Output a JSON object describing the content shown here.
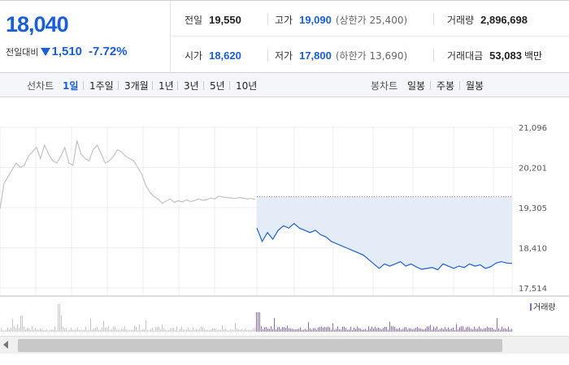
{
  "quote": {
    "price": "18,040",
    "diff_label": "전일대비",
    "diff_value": "1,510",
    "diff_rate": "-7.72%",
    "prev_close_label": "전일",
    "prev_close": "19,550",
    "open_label": "시가",
    "open": "18,620",
    "high_label": "고가",
    "high": "19,090",
    "upper_limit": "(상한가 25,400)",
    "low_label": "저가",
    "low": "17,800",
    "lower_limit": "(하한가 13,690)",
    "volume_label": "거래량",
    "volume": "2,896,698",
    "amount_label": "거래대금",
    "amount": "53,083",
    "amount_unit": "백만"
  },
  "toolbar": {
    "line_chart_label": "선차트",
    "periods": [
      "1일",
      "1주일",
      "3개월",
      "1년",
      "3년",
      "5년",
      "10년"
    ],
    "active_period": "1일",
    "candle_label": "봉차트",
    "candles": [
      "일봉",
      "주봉",
      "월봉"
    ]
  },
  "colors": {
    "up": "#d6392b",
    "down": "#1a5fd8",
    "prev_line": "#c2c2c2",
    "area": "#e4ecf8",
    "volume": "#8a6bb8"
  },
  "chart_data": {
    "type": "line",
    "y_ticks": [
      "21,096",
      "20,201",
      "19,305",
      "18,410",
      "17,514"
    ],
    "ylim": [
      17514,
      21096
    ],
    "prev_close": 19550,
    "volume_legend": "거래량",
    "series": [
      {
        "values": [
          19280,
          19850,
          20000,
          20150,
          20300,
          20200,
          20250,
          20450,
          20550,
          20650,
          20400,
          20700,
          20500,
          20350,
          20300,
          20450,
          20650,
          20300,
          20250,
          20800,
          20500,
          20400,
          20350,
          20600,
          20700,
          20500,
          20300,
          20350,
          20450,
          20600,
          20550,
          20450,
          20400,
          20350,
          20200,
          20050,
          19800,
          19650,
          19550,
          19500,
          19400,
          19450,
          19500,
          19420,
          19460,
          19430,
          19480,
          19440,
          19460,
          19500,
          19470,
          19480,
          19520,
          19500,
          19560,
          19540,
          19530,
          19520,
          19510,
          19530,
          19520,
          19500,
          19510,
          19490
        ]
      },
      {
        "values": [
          18850,
          18550,
          18750,
          18600,
          18800,
          18900,
          18850,
          18950,
          18850,
          18800,
          18750,
          18800,
          18700,
          18650,
          18550,
          18500,
          18450,
          18400,
          18350,
          18300,
          18250,
          18150,
          18050,
          17950,
          18050,
          18000,
          18050,
          18100,
          18000,
          18050,
          17980,
          17930,
          17950,
          17970,
          17920,
          18050,
          18000,
          17950,
          18000,
          17970,
          18050,
          18000,
          18030,
          17950,
          17990,
          18070,
          18100,
          18070,
          18060
        ]
      }
    ]
  }
}
